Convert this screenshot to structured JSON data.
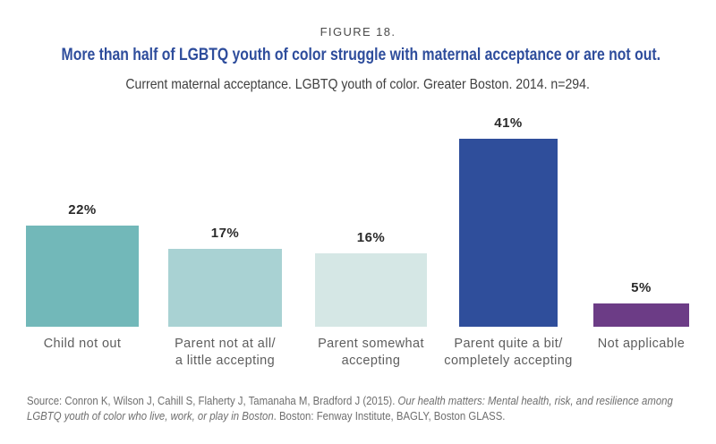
{
  "header": {
    "figure_label": "FIGURE 18.",
    "title": "More than half of LGBTQ youth of color struggle with maternal acceptance or are not out.",
    "subtitle": "Current maternal acceptance. LGBTQ youth of color. Greater Boston. 2014. n=294.",
    "title_color": "#2e4d9c"
  },
  "chart_data": {
    "type": "bar",
    "title": "More than half of LGBTQ youth of color struggle with maternal acceptance or are not out.",
    "subtitle": "Current maternal acceptance. LGBTQ youth of color. Greater Boston. 2014. n=294.",
    "categories": [
      "Child not out",
      "Parent not at all/ a little accepting",
      "Parent somewhat accepting",
      "Parent quite a bit/ completely accepting",
      "Not applicable"
    ],
    "category_lines": [
      [
        "Child not out"
      ],
      [
        "Parent not at all/",
        "a little accepting"
      ],
      [
        "Parent somewhat",
        "accepting"
      ],
      [
        "Parent quite a bit/",
        "completely accepting"
      ],
      [
        "Not applicable"
      ]
    ],
    "values": [
      22,
      17,
      16,
      41,
      5
    ],
    "value_labels": [
      "22%",
      "17%",
      "16%",
      "41%",
      "5%"
    ],
    "bar_colors": [
      "#72b8b9",
      "#a9d2d3",
      "#d5e7e5",
      "#2f4e9b",
      "#6c3c86"
    ],
    "value_label_color": "#2a2a2a",
    "category_label_color": "#5e5e5e",
    "xlabel": "",
    "ylabel": "",
    "ylim": [
      0,
      45
    ],
    "grid": false,
    "legend": false
  },
  "source": {
    "pre": "Source: Conron K, Wilson J, Cahill S, Flaherty J, Tamanaha M, Bradford J (2015). ",
    "italic": "Our health matters: Mental health, risk, and resilience among LGBTQ youth of color who live, work, or play in Boston",
    "post": ". Boston: Fenway Institute, BAGLY, Boston GLASS."
  }
}
